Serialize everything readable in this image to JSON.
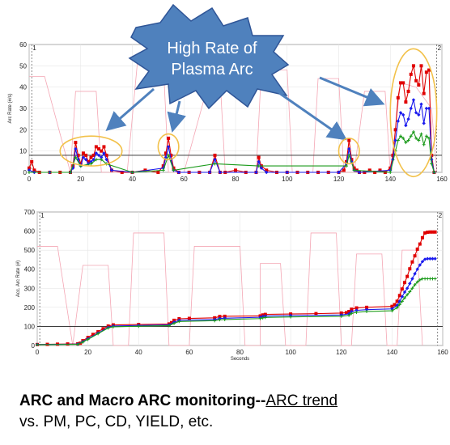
{
  "callout": {
    "line1": "High Rate of",
    "line2": "Plasma Arc"
  },
  "caption": {
    "bold": "ARC and Macro ARC monitoring--",
    "underline": "ARC trend",
    "line2": "vs. PM, PC, CD, YIELD, etc."
  },
  "colors": {
    "red": "#e00000",
    "blue": "#1a1aee",
    "green": "#1a9a1a",
    "pink": "#f4a6b4",
    "callout_fill": "#4f81bd",
    "highlight": "#f2c14a"
  },
  "chart_data": [
    {
      "type": "line",
      "ylabel": "Arc Rate (#/s)",
      "xlim": [
        0,
        160
      ],
      "ylim": [
        0,
        60
      ],
      "xticks": [
        0,
        20,
        40,
        60,
        80,
        100,
        120,
        140,
        160
      ],
      "yticks": [
        0,
        10,
        20,
        30,
        40,
        50,
        60
      ],
      "hline": 8,
      "vmarkers": [
        {
          "x": 1,
          "label": "1"
        },
        {
          "x": 158,
          "label": "2"
        }
      ],
      "series": [
        {
          "color": "red",
          "x": [
            0,
            1,
            2,
            4,
            8,
            12,
            16,
            17,
            18,
            19,
            20,
            21,
            22,
            23,
            24,
            25,
            26,
            27,
            28,
            29,
            30,
            32,
            36,
            40,
            45,
            50,
            52,
            53,
            54,
            55,
            56,
            58,
            62,
            66,
            70,
            72,
            74,
            76,
            80,
            84,
            88,
            89,
            90,
            92,
            96,
            100,
            104,
            108,
            112,
            116,
            120,
            122,
            123,
            124,
            125,
            126,
            127,
            128,
            130,
            132,
            134,
            136,
            138,
            140,
            141,
            142,
            143,
            144,
            145,
            146,
            147,
            148,
            149,
            150,
            151,
            152,
            153,
            154,
            155,
            156,
            157
          ],
          "y": [
            2,
            5,
            1,
            0,
            0,
            0,
            0,
            3,
            14,
            8,
            4,
            9,
            8,
            5,
            7,
            8,
            12,
            11,
            10,
            12,
            8,
            1,
            0,
            0,
            1,
            0,
            3,
            9,
            16,
            8,
            2,
            0,
            0,
            0,
            0,
            8,
            0,
            0,
            1,
            0,
            0,
            7,
            3,
            1,
            0,
            0,
            0,
            0,
            0,
            0,
            0,
            1,
            5,
            15,
            6,
            2,
            1,
            0,
            0,
            1,
            0,
            1,
            0,
            2,
            8,
            20,
            35,
            42,
            42,
            33,
            38,
            46,
            50,
            43,
            41,
            50,
            37,
            47,
            48,
            8,
            0
          ]
        },
        {
          "color": "blue",
          "x": [
            0,
            2,
            8,
            16,
            17,
            18,
            19,
            20,
            21,
            22,
            23,
            24,
            25,
            26,
            27,
            28,
            29,
            30,
            32,
            40,
            52,
            53,
            54,
            55,
            56,
            58,
            70,
            72,
            74,
            88,
            89,
            90,
            92,
            100,
            120,
            123,
            124,
            125,
            126,
            128,
            140,
            141,
            142,
            143,
            144,
            145,
            146,
            147,
            148,
            149,
            150,
            151,
            152,
            153,
            154,
            155,
            156,
            157
          ],
          "y": [
            1,
            0,
            0,
            0,
            2,
            11,
            6,
            3,
            7,
            6,
            4,
            5,
            6,
            9,
            8,
            7,
            9,
            6,
            1,
            0,
            2,
            7,
            12,
            6,
            1,
            0,
            0,
            6,
            0,
            0,
            5,
            2,
            0,
            0,
            0,
            4,
            11,
            5,
            1,
            0,
            1,
            6,
            15,
            24,
            28,
            27,
            22,
            25,
            30,
            34,
            28,
            27,
            32,
            23,
            30,
            30,
            6,
            0
          ]
        },
        {
          "color": "green",
          "x": [
            0,
            16,
            18,
            20,
            24,
            26,
            28,
            30,
            40,
            52,
            54,
            56,
            72,
            89,
            123,
            124,
            126,
            140,
            142,
            143,
            144,
            145,
            146,
            147,
            148,
            149,
            150,
            151,
            152,
            153,
            154,
            155,
            156,
            157
          ],
          "y": [
            0,
            0,
            7,
            3,
            4,
            6,
            6,
            4,
            0,
            1,
            8,
            1,
            4,
            3,
            3,
            8,
            1,
            0,
            10,
            15,
            17,
            16,
            14,
            15,
            17,
            19,
            16,
            15,
            18,
            13,
            17,
            16,
            4,
            0
          ]
        }
      ]
    },
    {
      "type": "line",
      "ylabel": "Acc. Arc Rate (#)",
      "xlabel": "Seconds",
      "xlim": [
        0,
        160
      ],
      "ylim": [
        0,
        700
      ],
      "xticks": [
        0,
        20,
        40,
        60,
        80,
        100,
        120,
        140,
        160
      ],
      "yticks": [
        0,
        100,
        200,
        300,
        400,
        500,
        600,
        700
      ],
      "hline": 100,
      "vmarkers": [
        {
          "x": 1,
          "label": "1"
        },
        {
          "x": 158,
          "label": "2"
        }
      ],
      "series": [
        {
          "color": "red",
          "x": [
            0,
            4,
            8,
            12,
            16,
            17,
            18,
            20,
            22,
            24,
            26,
            28,
            30,
            40,
            52,
            53,
            54,
            56,
            60,
            70,
            72,
            74,
            88,
            89,
            90,
            100,
            110,
            120,
            122,
            123,
            124,
            126,
            130,
            140,
            141,
            142,
            143,
            144,
            145,
            146,
            147,
            148,
            149,
            150,
            151,
            152,
            153,
            154,
            155,
            156,
            157
          ],
          "y": [
            5,
            6,
            7,
            8,
            9,
            12,
            25,
            42,
            58,
            72,
            88,
            102,
            108,
            110,
            113,
            120,
            132,
            140,
            142,
            145,
            152,
            153,
            155,
            160,
            163,
            165,
            167,
            170,
            172,
            178,
            190,
            197,
            200,
            205,
            214,
            232,
            262,
            296,
            330,
            362,
            402,
            438,
            470,
            505,
            532,
            565,
            590,
            594,
            595,
            595,
            595
          ]
        },
        {
          "color": "blue",
          "x": [
            0,
            16,
            18,
            20,
            24,
            28,
            30,
            40,
            52,
            54,
            56,
            70,
            72,
            74,
            88,
            89,
            90,
            100,
            120,
            123,
            124,
            126,
            130,
            140,
            142,
            143,
            144,
            145,
            146,
            147,
            148,
            149,
            150,
            151,
            152,
            153,
            154,
            155,
            156,
            157
          ],
          "y": [
            5,
            7,
            20,
            35,
            65,
            95,
            102,
            105,
            108,
            122,
            132,
            136,
            142,
            143,
            148,
            152,
            154,
            157,
            160,
            166,
            178,
            184,
            188,
            192,
            210,
            232,
            256,
            280,
            300,
            325,
            350,
            376,
            400,
            422,
            440,
            452,
            455,
            455,
            455,
            455
          ]
        },
        {
          "color": "green",
          "x": [
            0,
            16,
            18,
            20,
            24,
            28,
            30,
            40,
            52,
            54,
            56,
            70,
            72,
            74,
            88,
            89,
            90,
            100,
            120,
            123,
            124,
            126,
            130,
            140,
            142,
            143,
            144,
            145,
            146,
            147,
            148,
            149,
            150,
            151,
            152,
            153,
            154,
            155,
            156,
            157
          ],
          "y": [
            4,
            6,
            18,
            32,
            62,
            92,
            98,
            101,
            104,
            116,
            126,
            130,
            135,
            136,
            141,
            145,
            147,
            150,
            153,
            158,
            168,
            174,
            178,
            182,
            198,
            215,
            232,
            250,
            266,
            282,
            300,
            318,
            333,
            344,
            350,
            350,
            350,
            350,
            350,
            350
          ]
        }
      ]
    }
  ]
}
